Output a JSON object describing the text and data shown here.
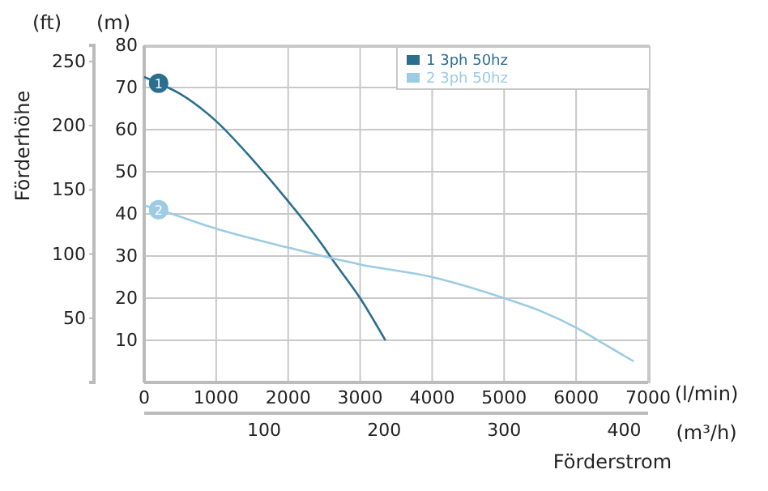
{
  "chart_data": {
    "type": "line",
    "y2label": "Förderhöhe",
    "xlabel": "Förderstrom",
    "x": [
      0,
      200,
      500,
      1000,
      1500,
      2000,
      2500,
      2600,
      3000,
      3350
    ],
    "series": [
      {
        "name": "1 3ph 50hz",
        "color": "#2b6e8e",
        "values": [
          72.5,
          71,
          68.5,
          62,
          53,
          43,
          32,
          29.5,
          20,
          10
        ]
      },
      {
        "name": "2 3ph 50hz",
        "color": "#9ccbe3",
        "x": [
          0,
          200,
          1000,
          2000,
          2600,
          3000,
          4000,
          5000,
          5500,
          6000,
          6400,
          6800
        ],
        "values": [
          42,
          41,
          36.5,
          32,
          29.5,
          28,
          25,
          20,
          17,
          13,
          9,
          5
        ]
      }
    ],
    "xlim": [
      0,
      7000
    ],
    "xticks": [
      0,
      1000,
      2000,
      3000,
      4000,
      5000,
      6000,
      7000
    ],
    "ylim": [
      0,
      80
    ],
    "yticks": [
      10,
      20,
      30,
      40,
      50,
      60,
      70,
      80
    ],
    "y2lim": [
      0,
      262.5
    ],
    "y2ticks": [
      50,
      100,
      150,
      200,
      250
    ],
    "x2lim": [
      0,
      420
    ],
    "x2ticks": [
      100,
      200,
      300,
      400
    ],
    "grid": true,
    "legend": "top right",
    "annotations": [
      {
        "text": "1",
        "x": 200,
        "y": 71
      },
      {
        "text": "2",
        "x": 200,
        "y": 41
      },
      "(ft)",
      "(m)",
      "(l/min)",
      "(m³/h)"
    ]
  }
}
